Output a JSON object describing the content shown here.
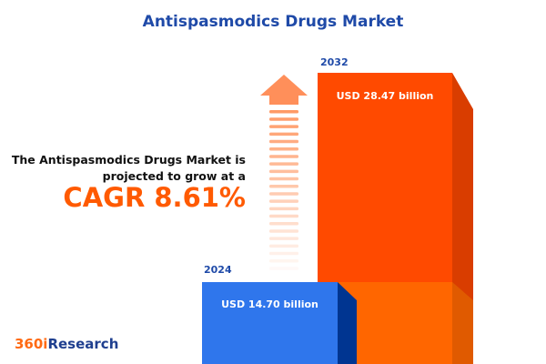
{
  "title": "Antispasmodics Drugs Market",
  "lead_line1": "The Antispasmodics Drugs Market is",
  "lead_line2": "projected to grow at a",
  "cagr": "CAGR 8.61%",
  "logo": {
    "part1": "360i",
    "part2": "Research"
  },
  "colors": {
    "bar_2024": "#2f76ec",
    "bar_2032": "#ff4a00",
    "title": "#1f4aa8",
    "accent": "#ff5a00"
  },
  "chart_data": {
    "type": "bar",
    "categories": [
      "2024",
      "2032"
    ],
    "values": [
      14.7,
      28.47
    ],
    "value_labels": [
      "USD 14.70 billion",
      "USD 28.47 billion"
    ],
    "unit": "USD billion",
    "cagr_percent": 8.61
  }
}
